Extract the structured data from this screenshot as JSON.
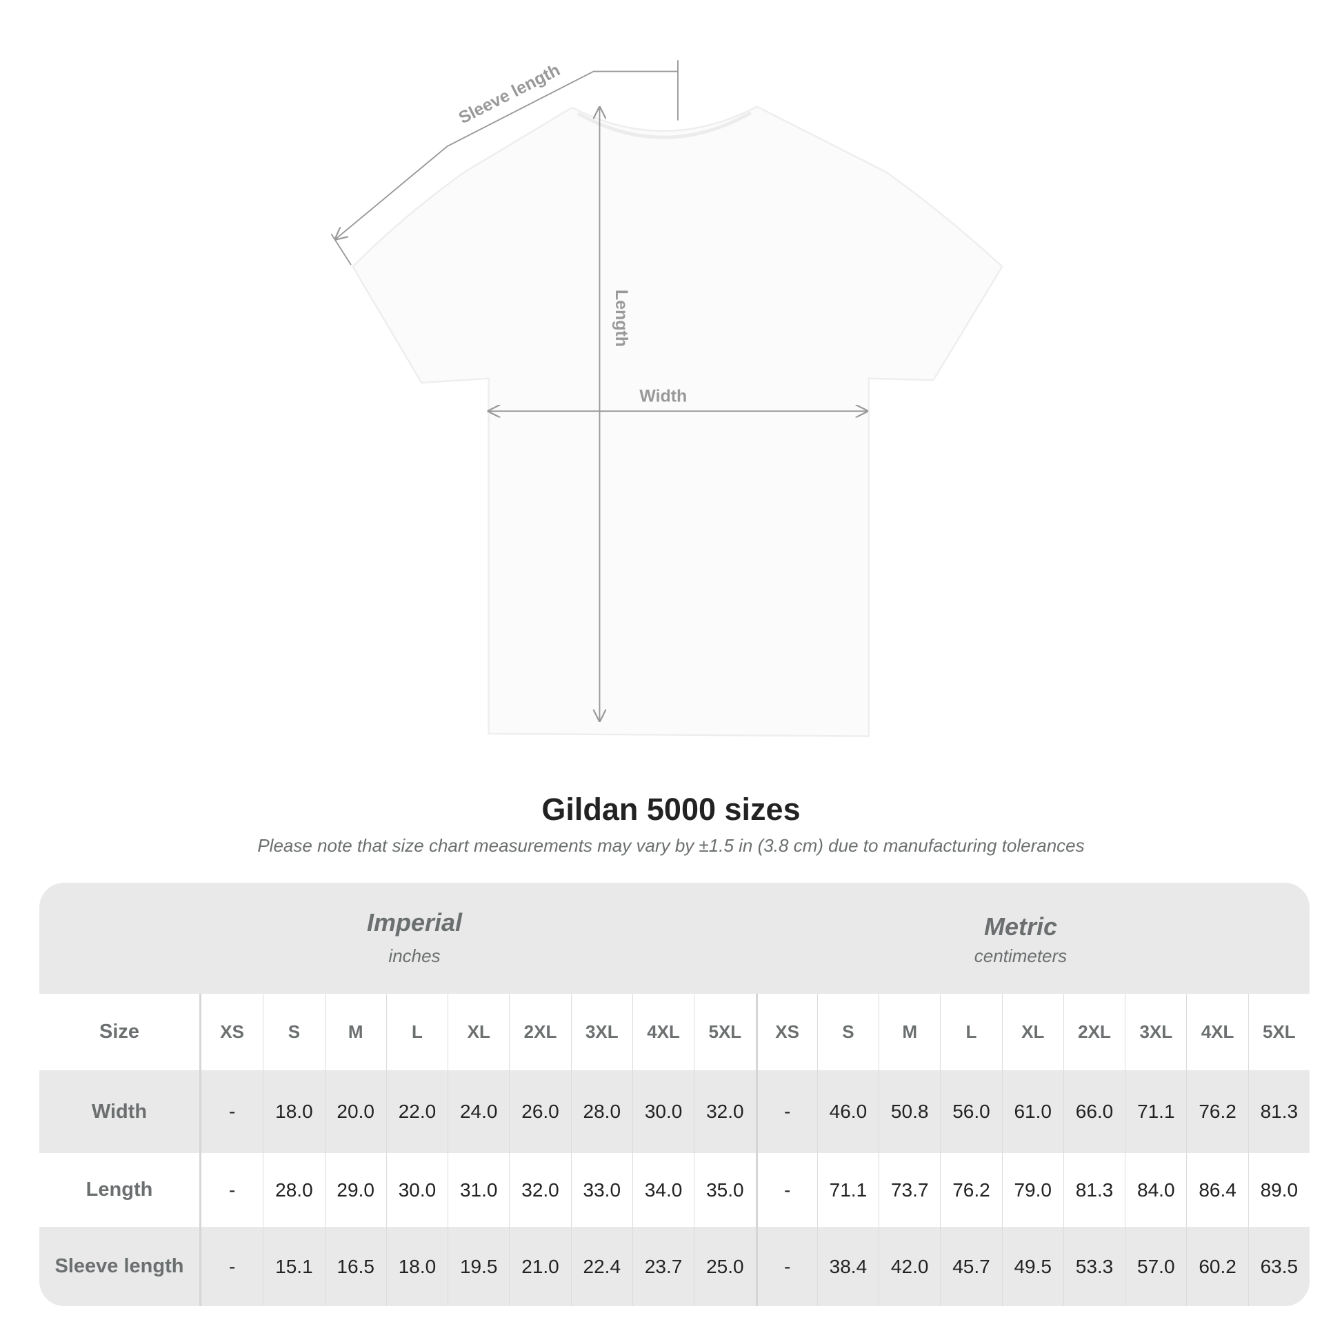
{
  "diagram": {
    "labels": {
      "sleeve": "Sleeve length",
      "length": "Length",
      "width": "Width"
    },
    "shirt_color": "#ffffff",
    "line_color": "#999999"
  },
  "title": "Gildan 5000 sizes",
  "note": "Please note that size chart measurements may vary by ±1.5 in (3.8 cm) due to manufacturing tolerances",
  "table": {
    "imperial": {
      "name": "Imperial",
      "unit": "inches"
    },
    "metric": {
      "name": "Metric",
      "unit": "centimeters"
    },
    "size_label": "Size",
    "sizes": [
      "XS",
      "S",
      "M",
      "L",
      "XL",
      "2XL",
      "3XL",
      "4XL",
      "5XL",
      "XS",
      "S",
      "M",
      "L",
      "XL",
      "2XL",
      "3XL",
      "4XL",
      "5XL"
    ],
    "rows": [
      {
        "label": "Width",
        "values": [
          "-",
          "18.0",
          "20.0",
          "22.0",
          "24.0",
          "26.0",
          "28.0",
          "30.0",
          "32.0",
          "-",
          "46.0",
          "50.8",
          "56.0",
          "61.0",
          "66.0",
          "71.1",
          "76.2",
          "81.3"
        ]
      },
      {
        "label": "Length",
        "values": [
          "-",
          "28.0",
          "29.0",
          "30.0",
          "31.0",
          "32.0",
          "33.0",
          "34.0",
          "35.0",
          "-",
          "71.1",
          "73.7",
          "76.2",
          "79.0",
          "81.3",
          "84.0",
          "86.4",
          "89.0"
        ]
      },
      {
        "label": "Sleeve length",
        "values": [
          "-",
          "15.1",
          "16.5",
          "18.0",
          "19.5",
          "21.0",
          "22.4",
          "23.7",
          "25.0",
          "-",
          "38.4",
          "42.0",
          "45.7",
          "49.5",
          "53.3",
          "57.0",
          "60.2",
          "63.5"
        ]
      }
    ],
    "header_bg": "#e9e9e9"
  }
}
